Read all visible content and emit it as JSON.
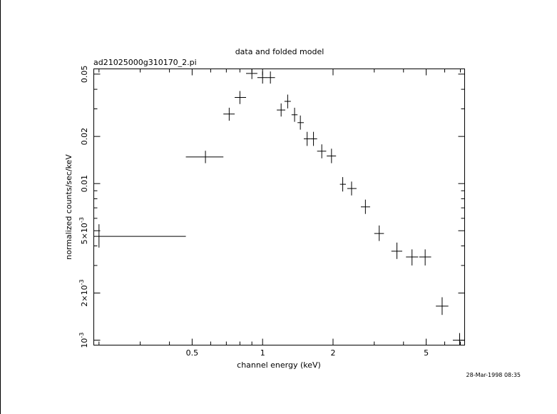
{
  "chart_data": {
    "type": "scatter",
    "title": "data and folded model",
    "subtitle": "ad21025000g310170_2.pi",
    "xlabel": "channel energy (keV)",
    "ylabel": "normalized counts/sec/keV",
    "footer": "28-Mar-1998 08:35",
    "xscale": "log",
    "yscale": "log",
    "xlim": [
      0.19,
      7.3
    ],
    "ylim": [
      0.00093,
      0.054
    ],
    "grid": false,
    "x_ticks": [
      {
        "value": 0.5,
        "label": "0.5"
      },
      {
        "value": 1,
        "label": "1"
      },
      {
        "value": 2,
        "label": "2"
      },
      {
        "value": 5,
        "label": "5"
      }
    ],
    "y_ticks": [
      {
        "value": 0.001,
        "base": "10",
        "exp": "-3"
      },
      {
        "value": 0.002,
        "base": "2×10",
        "exp": "-3"
      },
      {
        "value": 0.005,
        "base": "5×10",
        "exp": "-3"
      },
      {
        "value": 0.01,
        "label": "0.01"
      },
      {
        "value": 0.02,
        "label": "0.02"
      },
      {
        "value": 0.05,
        "label": "0.05"
      }
    ],
    "series": [
      {
        "points": [
          {
            "x": 0.2,
            "xlo": 0.19,
            "xhi": 0.47,
            "y": 0.0046,
            "ylo": 0.0039,
            "yhi": 0.0055
          },
          {
            "x": 0.57,
            "xlo": 0.47,
            "xhi": 0.68,
            "y": 0.0148,
            "ylo": 0.0135,
            "yhi": 0.0162
          },
          {
            "x": 0.72,
            "xlo": 0.68,
            "xhi": 0.76,
            "y": 0.0278,
            "ylo": 0.0252,
            "yhi": 0.0305
          },
          {
            "x": 0.8,
            "xlo": 0.76,
            "xhi": 0.85,
            "y": 0.0355,
            "ylo": 0.0322,
            "yhi": 0.039
          },
          {
            "x": 0.9,
            "xlo": 0.85,
            "xhi": 0.95,
            "y": 0.0505,
            "ylo": 0.0465,
            "yhi": 0.054
          },
          {
            "x": 1.0,
            "xlo": 0.95,
            "xhi": 1.05,
            "y": 0.0475,
            "ylo": 0.0435,
            "yhi": 0.052
          },
          {
            "x": 1.08,
            "xlo": 1.05,
            "xhi": 1.13,
            "y": 0.0475,
            "ylo": 0.0435,
            "yhi": 0.052
          },
          {
            "x": 1.2,
            "xlo": 1.15,
            "xhi": 1.25,
            "y": 0.0295,
            "ylo": 0.0268,
            "yhi": 0.0325
          },
          {
            "x": 1.28,
            "xlo": 1.24,
            "xhi": 1.32,
            "y": 0.0335,
            "ylo": 0.0302,
            "yhi": 0.037
          },
          {
            "x": 1.37,
            "xlo": 1.33,
            "xhi": 1.41,
            "y": 0.0275,
            "ylo": 0.0248,
            "yhi": 0.0305
          },
          {
            "x": 1.45,
            "xlo": 1.41,
            "xhi": 1.5,
            "y": 0.0245,
            "ylo": 0.0221,
            "yhi": 0.0272
          },
          {
            "x": 1.55,
            "xlo": 1.5,
            "xhi": 1.6,
            "y": 0.0193,
            "ylo": 0.0174,
            "yhi": 0.0214
          },
          {
            "x": 1.65,
            "xlo": 1.6,
            "xhi": 1.71,
            "y": 0.0193,
            "ylo": 0.0174,
            "yhi": 0.0214
          },
          {
            "x": 1.79,
            "xlo": 1.71,
            "xhi": 1.87,
            "y": 0.0161,
            "ylo": 0.0145,
            "yhi": 0.0178
          },
          {
            "x": 1.97,
            "xlo": 1.88,
            "xhi": 2.06,
            "y": 0.015,
            "ylo": 0.0135,
            "yhi": 0.0167
          },
          {
            "x": 2.2,
            "xlo": 2.14,
            "xhi": 2.27,
            "y": 0.0099,
            "ylo": 0.0089,
            "yhi": 0.011
          },
          {
            "x": 2.4,
            "xlo": 2.3,
            "xhi": 2.52,
            "y": 0.0093,
            "ylo": 0.0084,
            "yhi": 0.0103
          },
          {
            "x": 2.75,
            "xlo": 2.63,
            "xhi": 2.88,
            "y": 0.0071,
            "ylo": 0.0064,
            "yhi": 0.0079
          },
          {
            "x": 3.15,
            "xlo": 3.0,
            "xhi": 3.3,
            "y": 0.0048,
            "ylo": 0.0043,
            "yhi": 0.0054
          },
          {
            "x": 3.75,
            "xlo": 3.55,
            "xhi": 3.95,
            "y": 0.0037,
            "ylo": 0.0033,
            "yhi": 0.0042
          },
          {
            "x": 4.35,
            "xlo": 4.1,
            "xhi": 4.62,
            "y": 0.0034,
            "ylo": 0.003,
            "yhi": 0.0038
          },
          {
            "x": 4.95,
            "xlo": 4.67,
            "xhi": 5.25,
            "y": 0.0034,
            "ylo": 0.003,
            "yhi": 0.0038
          },
          {
            "x": 5.85,
            "xlo": 5.5,
            "xhi": 6.22,
            "y": 0.00165,
            "ylo": 0.00145,
            "yhi": 0.00188
          },
          {
            "x": 6.95,
            "xlo": 6.5,
            "xhi": 7.3,
            "y": 0.001,
            "ylo": 0.00093,
            "yhi": 0.00111
          }
        ]
      }
    ]
  }
}
